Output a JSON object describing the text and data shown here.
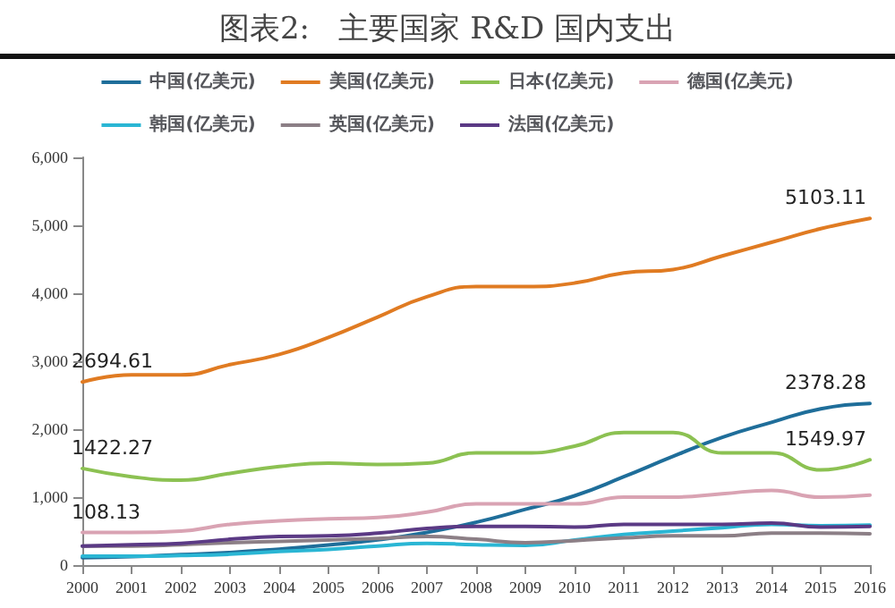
{
  "chart_data": {
    "type": "line",
    "title": "图表2:   主要国家 R&D 国内支出",
    "categories": [
      "2000",
      "2001",
      "2002",
      "2003",
      "2004",
      "2005",
      "2006",
      "2007",
      "2008",
      "2009",
      "2010",
      "2011",
      "2012",
      "2013",
      "2014",
      "2015",
      "2016"
    ],
    "series": [
      {
        "name": "中国(亿美元)",
        "color": "#1f6e9a",
        "values": [
          108.13,
          125,
          155,
          185,
          235,
          295,
          370,
          480,
          630,
          820,
          1020,
          1300,
          1600,
          1880,
          2100,
          2300,
          2378.28
        ]
      },
      {
        "name": "美国(亿美元)",
        "color": "#e07b22",
        "values": [
          2694.61,
          2800,
          2800,
          2950,
          3100,
          3350,
          3650,
          3950,
          4100,
          4100,
          4150,
          4300,
          4350,
          4550,
          4750,
          4950,
          5103.11
        ]
      },
      {
        "name": "日本(亿美元)",
        "color": "#8cc152",
        "values": [
          1422.27,
          1300,
          1250,
          1350,
          1450,
          1500,
          1480,
          1500,
          1650,
          1650,
          1750,
          1950,
          1950,
          1650,
          1650,
          1400,
          1549.97
        ]
      },
      {
        "name": "德国(亿美元)",
        "color": "#d9a3b3",
        "values": [
          480,
          480,
          500,
          600,
          650,
          680,
          700,
          780,
          900,
          900,
          900,
          1000,
          1000,
          1050,
          1100,
          1000,
          1030
        ]
      },
      {
        "name": "韩国(亿美元)",
        "color": "#2ab6d4",
        "values": [
          130,
          130,
          140,
          160,
          200,
          230,
          280,
          320,
          300,
          290,
          370,
          450,
          500,
          550,
          600,
          580,
          590
        ]
      },
      {
        "name": "英国(亿美元)",
        "color": "#8c7f86",
        "values": [
          280,
          280,
          300,
          330,
          350,
          370,
          390,
          420,
          380,
          330,
          360,
          400,
          430,
          430,
          470,
          470,
          460
        ]
      },
      {
        "name": "法国(亿美元)",
        "color": "#5b3a85",
        "values": [
          280,
          300,
          320,
          380,
          420,
          430,
          470,
          540,
          570,
          570,
          560,
          600,
          600,
          600,
          620,
          560,
          570
        ]
      }
    ],
    "ylim": [
      0,
      6000
    ],
    "yticks": [
      0,
      {
        "value": 1000,
        "label": "1,000"
      },
      {
        "value": 2000,
        "label": "2,000"
      },
      {
        "value": 3000,
        "label": "3,000"
      },
      {
        "value": 4000,
        "label": "4,000"
      },
      {
        "value": 5000,
        "label": "5,000"
      },
      {
        "value": 6000,
        "label": "6,000"
      }
    ],
    "annotations": [
      {
        "text": "2694.61",
        "x": "2000",
        "y": 2694.61
      },
      {
        "text": "1422.27",
        "x": "2000",
        "y": 1422.27
      },
      {
        "text": "108.13",
        "x": "2000",
        "y": 108.13
      },
      {
        "text": "5103.11",
        "x": "2016",
        "y": 5103.11
      },
      {
        "text": "2378.28",
        "x": "2016",
        "y": 2378.28
      },
      {
        "text": "1549.97",
        "x": "2016",
        "y": 1549.97
      }
    ],
    "grid": false,
    "legend": "top",
    "marker": "none",
    "line_style": "solid"
  }
}
